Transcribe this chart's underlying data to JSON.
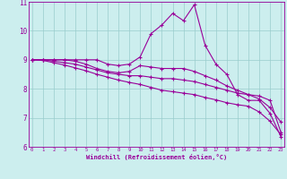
{
  "xlabel": "Windchill (Refroidissement éolien,°C)",
  "bg_color": "#cceeee",
  "line_color": "#990099",
  "grid_color": "#99cccc",
  "xmin": 0,
  "xmax": 23,
  "ymin": 6,
  "ymax": 11,
  "hours": [
    0,
    1,
    2,
    3,
    4,
    5,
    6,
    7,
    8,
    9,
    10,
    11,
    12,
    13,
    14,
    15,
    16,
    17,
    18,
    19,
    20,
    21,
    22,
    23
  ],
  "line1": [
    9.0,
    9.0,
    9.0,
    9.0,
    9.0,
    9.0,
    9.0,
    8.85,
    8.8,
    8.85,
    9.1,
    9.9,
    10.2,
    10.6,
    10.35,
    10.9,
    9.5,
    8.85,
    8.5,
    7.8,
    7.6,
    7.6,
    7.15,
    6.35
  ],
  "line2": [
    9.0,
    9.0,
    9.0,
    9.0,
    8.95,
    8.85,
    8.7,
    8.6,
    8.55,
    8.6,
    8.8,
    8.75,
    8.7,
    8.7,
    8.7,
    8.6,
    8.45,
    8.3,
    8.1,
    7.95,
    7.8,
    7.75,
    7.6,
    6.5
  ],
  "line3": [
    9.0,
    9.0,
    8.95,
    8.9,
    8.85,
    8.75,
    8.65,
    8.55,
    8.5,
    8.45,
    8.45,
    8.4,
    8.35,
    8.35,
    8.3,
    8.25,
    8.15,
    8.05,
    7.95,
    7.85,
    7.8,
    7.65,
    7.35,
    6.85
  ],
  "line4": [
    9.0,
    8.98,
    8.9,
    8.82,
    8.72,
    8.62,
    8.5,
    8.4,
    8.3,
    8.22,
    8.15,
    8.05,
    7.95,
    7.9,
    7.85,
    7.8,
    7.7,
    7.62,
    7.52,
    7.45,
    7.4,
    7.2,
    6.88,
    6.42
  ]
}
